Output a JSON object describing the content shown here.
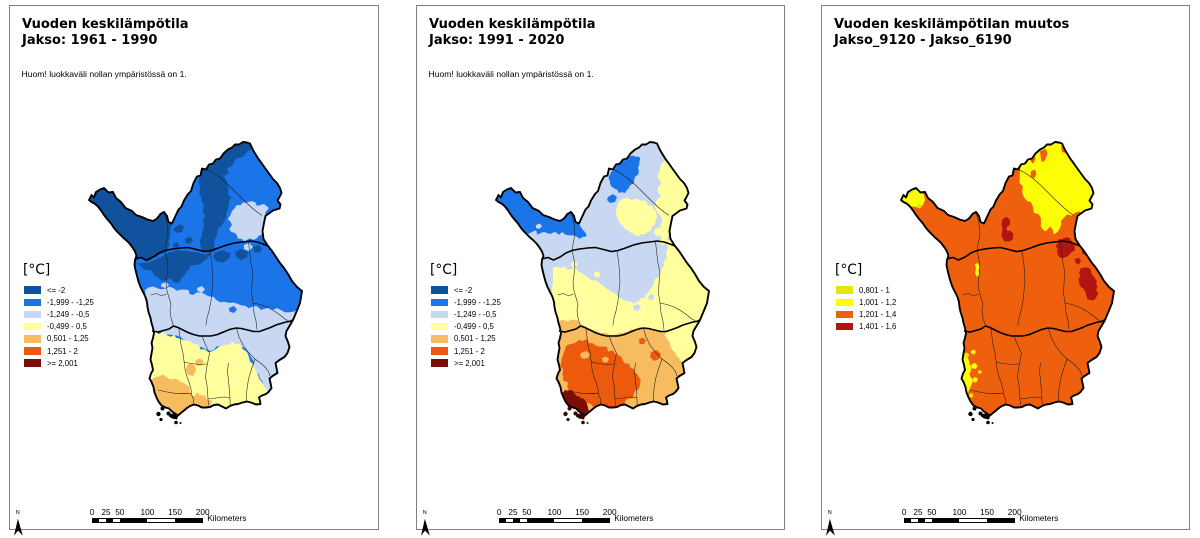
{
  "figure": "Three map panels of Finnish Lapland: annual mean temperature 1961-1990, 1991-2020, and their difference",
  "colors": {
    "t_dkblue": "#11529e",
    "t_blue": "#1b75e8",
    "t_paleblue": "#c8d8f2",
    "t_yellow": "#ffff9e",
    "t_ltorange": "#f8bc60",
    "t_orange": "#ee5a0d",
    "t_maroon": "#7b0d04",
    "c_olive": "#e6e414",
    "c_yellow": "#fdfd08",
    "c_orange": "#ef600e",
    "c_red": "#b21511",
    "panel_border": "#808080",
    "ink": "#000000"
  },
  "panels": [
    {
      "title_line1": "Vuoden keskilämpötila",
      "title_line2": "Jakso: 1961 - 1990",
      "note": "Huom! luokkaväli nollan ympäristössä on 1.",
      "legend_title": "[°C]",
      "legend": [
        {
          "color_key": "t_dkblue",
          "label": "<= -2"
        },
        {
          "color_key": "t_blue",
          "label": "-1,999 - -1,25"
        },
        {
          "color_key": "t_paleblue",
          "label": "-1,249 - -0,5"
        },
        {
          "color_key": "t_yellow",
          "label": "-0,499 - 0,5"
        },
        {
          "color_key": "t_ltorange",
          "label": "0,501 - 1,25"
        },
        {
          "color_key": "t_orange",
          "label": "1,251 - 2"
        },
        {
          "color_key": "t_maroon",
          "label": ">= 2,001"
        }
      ],
      "scalebar": {
        "ticks": [
          0,
          25,
          50,
          100,
          150,
          200
        ],
        "unit": "Kilometers"
      },
      "north_label": "N"
    },
    {
      "title_line1": "Vuoden keskilämpötila",
      "title_line2": "Jakso: 1991 - 2020",
      "note": "Huom! luokkaväli nollan ympäristössä on 1.",
      "legend_title": "[°C]",
      "legend": [
        {
          "color_key": "t_dkblue",
          "label": "<= -2"
        },
        {
          "color_key": "t_blue",
          "label": "-1,999 - -1,25"
        },
        {
          "color_key": "t_paleblue",
          "label": "-1,249 - -0,5"
        },
        {
          "color_key": "t_yellow",
          "label": "-0,499 - 0,5"
        },
        {
          "color_key": "t_ltorange",
          "label": "0,501 - 1,25"
        },
        {
          "color_key": "t_orange",
          "label": "1,251 - 2"
        },
        {
          "color_key": "t_maroon",
          "label": ">= 2,001"
        }
      ],
      "scalebar": {
        "ticks": [
          0,
          25,
          50,
          100,
          150,
          200
        ],
        "unit": "Kilometers"
      },
      "north_label": "N"
    },
    {
      "title_line1": "Vuoden keskilämpötilan muutos",
      "title_line2": "Jakso_9120 - Jakso_6190",
      "note": "",
      "legend_title": "[°C]",
      "legend": [
        {
          "color_key": "c_olive",
          "label": "0,801 - 1"
        },
        {
          "color_key": "c_yellow",
          "label": "1,001 - 1,2"
        },
        {
          "color_key": "c_orange",
          "label": "1,201 - 1,4"
        },
        {
          "color_key": "c_red",
          "label": "1,401 - 1,6"
        }
      ],
      "scalebar": {
        "ticks": [
          0,
          25,
          50,
          100,
          150,
          200
        ],
        "unit": "Kilometers"
      },
      "north_label": "N"
    }
  ],
  "scalebar_geometry": {
    "x0": 82.2,
    "x200": 192.7,
    "subdivisions_km": [
      0,
      12.5,
      25,
      37.5,
      50,
      100,
      150,
      200
    ]
  }
}
